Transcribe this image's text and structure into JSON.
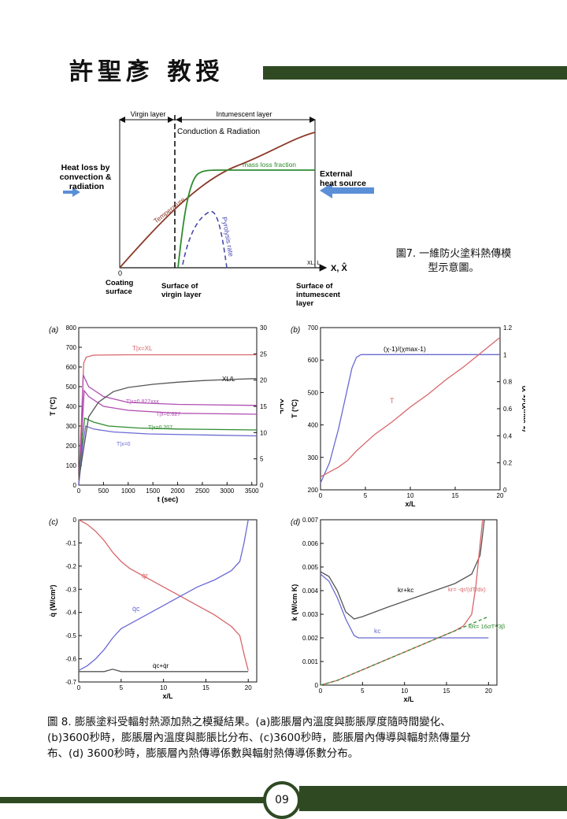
{
  "header": {
    "title": "許聖彥 教授"
  },
  "fig7": {
    "virgin_layer": "Virgin layer",
    "intumescent_layer": "Intumescent layer",
    "conduction_radiation": "Conduction & Radiation",
    "mass_loss_fraction": "mass loss fraction",
    "temperature": "Temperature",
    "pyrolysis_rate": "Pyrolysis rate",
    "heat_loss": [
      "Heat loss by",
      "convection &",
      "radiation"
    ],
    "external_heat": [
      "External",
      "heat source"
    ],
    "axis_x": "X, X̂",
    "x_l": "XL, L",
    "origin": "0",
    "coating_surface": [
      "Coating",
      "surface"
    ],
    "surface_virgin": [
      "Surface of",
      "virgin layer"
    ],
    "surface_intumescent": [
      "Surface of",
      "intumescent",
      "layer"
    ],
    "caption": [
      "圖7. 一維防火塗料熱傳模",
      "型示意圖。"
    ]
  },
  "chart_data": [
    {
      "type": "line",
      "panel": "(a)",
      "xlabel": "t (sec)",
      "ylabel": "T (°C)",
      "y2label": "XL/L",
      "xlim": [
        0,
        3600
      ],
      "ylim": [
        0,
        800
      ],
      "y2lim": [
        0,
        30
      ],
      "x_ticks": [
        "0",
        "500",
        "1000",
        "1500",
        "2000",
        "2500",
        "3000",
        "3500"
      ],
      "y_ticks": [
        "0",
        "100",
        "200",
        "300",
        "400",
        "500",
        "600",
        "700",
        "800"
      ],
      "y2_ticks": [
        "0",
        "5",
        "10",
        "15",
        "20",
        "25",
        "30"
      ],
      "series": [
        {
          "name": "T|x=XL",
          "x": [
            0,
            50,
            100,
            150,
            300,
            1000,
            2000,
            3600
          ],
          "y": [
            0,
            300,
            620,
            650,
            660,
            662,
            662,
            662
          ]
        },
        {
          "name": "T|x=0.827xxx",
          "x": [
            0,
            60,
            90,
            200,
            500,
            1000,
            2000,
            3600
          ],
          "y": [
            0,
            300,
            560,
            500,
            450,
            420,
            410,
            405
          ]
        },
        {
          "name": "T|x=0.627",
          "x": [
            0,
            70,
            110,
            200,
            500,
            1000,
            2000,
            3600
          ],
          "y": [
            0,
            300,
            480,
            450,
            400,
            380,
            365,
            360
          ]
        },
        {
          "name": "T|x=0.207",
          "x": [
            0,
            80,
            120,
            300,
            600,
            1200,
            2000,
            3600
          ],
          "y": [
            0,
            250,
            340,
            320,
            300,
            290,
            285,
            280
          ]
        },
        {
          "name": "T|x=0",
          "x": [
            0,
            80,
            140,
            300,
            700,
            1400,
            2500,
            3600
          ],
          "y": [
            0,
            200,
            300,
            285,
            270,
            260,
            255,
            250
          ]
        },
        {
          "name": "XL/L",
          "x": [
            0,
            100,
            200,
            400,
            700,
            1000,
            1500,
            2000,
            2500,
            3000,
            3600
          ],
          "y": [
            1,
            7,
            13,
            15.8,
            17.8,
            18.6,
            19.2,
            19.6,
            19.9,
            20.1,
            20.3
          ]
        }
      ]
    },
    {
      "type": "line",
      "panel": "(b)",
      "xlabel": "x/L",
      "ylabel": "T (°C)",
      "y2label": "(χ-1)/(χmax-1)",
      "xlim": [
        0,
        20
      ],
      "ylim": [
        200,
        700
      ],
      "y2lim": [
        0,
        1.2
      ],
      "x_ticks": [
        "0",
        "5",
        "10",
        "15",
        "20"
      ],
      "y_ticks": [
        "200",
        "300",
        "400",
        "500",
        "600",
        "700"
      ],
      "y2_ticks": [
        "0",
        "0.2",
        "0.4",
        "0.6",
        "0.8",
        "1",
        "1.2"
      ],
      "series": [
        {
          "name": "(χ-1)/(χmax-1)",
          "x": [
            0,
            1,
            2,
            3,
            3.5,
            4,
            4.5,
            5,
            10,
            20
          ],
          "y": [
            0.05,
            0.2,
            0.45,
            0.75,
            0.9,
            0.98,
            1.0,
            1.0,
            1.0,
            1.0
          ]
        },
        {
          "name": "T",
          "x": [
            0,
            1,
            2,
            3,
            4,
            5,
            6,
            8,
            10,
            12,
            14,
            16,
            18,
            20
          ],
          "y": [
            240,
            255,
            270,
            290,
            320,
            345,
            370,
            410,
            455,
            495,
            540,
            580,
            625,
            670
          ]
        }
      ]
    },
    {
      "type": "line",
      "panel": "(c)",
      "xlabel": "x/L",
      "ylabel": "q̇ (W/cm²)",
      "xlim": [
        0,
        21
      ],
      "ylim": [
        -0.7,
        0
      ],
      "x_ticks": [
        "0",
        "5",
        "10",
        "15",
        "20"
      ],
      "y_ticks": [
        "0",
        "-0.1",
        "-0.2",
        "-0.3",
        "-0.4",
        "-0.5",
        "-0.6",
        "-0.7"
      ],
      "series": [
        {
          "name": "q̇r",
          "x": [
            0,
            1,
            2,
            3,
            4,
            5,
            6,
            8,
            10,
            12,
            14,
            16,
            18,
            19,
            19.5,
            20
          ],
          "y": [
            0,
            -0.02,
            -0.05,
            -0.09,
            -0.14,
            -0.18,
            -0.21,
            -0.25,
            -0.29,
            -0.33,
            -0.37,
            -0.41,
            -0.46,
            -0.5,
            -0.58,
            -0.65
          ]
        },
        {
          "name": "q̇c",
          "x": [
            0,
            1,
            2,
            3,
            4,
            5,
            6,
            8,
            10,
            12,
            14,
            16,
            18,
            19,
            19.5,
            20
          ],
          "y": [
            -0.65,
            -0.63,
            -0.6,
            -0.56,
            -0.51,
            -0.47,
            -0.45,
            -0.41,
            -0.37,
            -0.33,
            -0.29,
            -0.26,
            -0.22,
            -0.18,
            -0.1,
            0
          ]
        },
        {
          "name": "q̇c+q̇r",
          "x": [
            0,
            3,
            4,
            5,
            10,
            20
          ],
          "y": [
            -0.655,
            -0.655,
            -0.645,
            -0.655,
            -0.655,
            -0.655
          ]
        }
      ]
    },
    {
      "type": "line",
      "panel": "(d)",
      "xlabel": "x/L",
      "ylabel": "k (W/cm K)",
      "xlim": [
        0,
        21
      ],
      "ylim": [
        0,
        0.007
      ],
      "x_ticks": [
        "0",
        "5",
        "10",
        "15",
        "20"
      ],
      "y_ticks": [
        "0",
        "0.001",
        "0.002",
        "0.003",
        "0.004",
        "0.005",
        "0.006",
        "0.007"
      ],
      "series": [
        {
          "name": "kr+kc",
          "x": [
            0,
            1,
            2,
            3,
            4,
            5,
            8,
            12,
            16,
            18,
            19,
            19.5
          ],
          "y": [
            0.0048,
            0.0046,
            0.004,
            0.0031,
            0.0028,
            0.0029,
            0.0033,
            0.0038,
            0.0043,
            0.0047,
            0.0055,
            0.007
          ]
        },
        {
          "name": "kc",
          "x": [
            0,
            1,
            2,
            3,
            4,
            4.5,
            5,
            10,
            20
          ],
          "y": [
            0.0047,
            0.0044,
            0.0037,
            0.0028,
            0.0021,
            0.002,
            0.002,
            0.002,
            0.002
          ]
        },
        {
          "name": "kr = -q̇r/(dT/dx)",
          "x": [
            0,
            2,
            4,
            6,
            8,
            10,
            12,
            14,
            16,
            17,
            18,
            18.5,
            19,
            19.3
          ],
          "y": [
            0,
            0.0002,
            0.0005,
            0.0008,
            0.0011,
            0.0014,
            0.0017,
            0.002,
            0.0023,
            0.0025,
            0.003,
            0.0042,
            0.006,
            0.007
          ]
        },
        {
          "name": "kR = 16σT³/3β",
          "x": [
            0,
            2,
            4,
            6,
            8,
            10,
            12,
            14,
            16,
            18,
            20
          ],
          "y": [
            0,
            0.0002,
            0.0005,
            0.0008,
            0.0011,
            0.0014,
            0.0017,
            0.002,
            0.0023,
            0.0026,
            0.0029
          ]
        }
      ]
    }
  ],
  "fig8": {
    "labels": {
      "a_TXL": "T|x=XL",
      "a_T0827": "T|x=0.827xxx",
      "a_T0627": "T|x=0.627",
      "a_T0207": "T|x=0.207",
      "a_T0": "T|x=0",
      "a_XL": "XL/L",
      "b_chi": "(χ-1)/(χmax-1)",
      "b_T": "T",
      "c_qr": "q̇r",
      "c_qc": "q̇c",
      "c_sum": "q̇c+q̇r",
      "d_sum": "kr+kc",
      "d_kc": "kc",
      "d_kr": "kr= -q̇r/(dT/dx)",
      "d_kR": "kR= 16σT³/3β"
    },
    "caption": [
      "圖 8. 膨脹塗料受輻射熱源加熱之模擬結果。(a)膨脹層內溫度與膨脹厚度隨時間變化、",
      "(b)3600秒時，膨脹層內溫度與膨脹比分布、(c)3600秒時，膨脹層內傳導與輻射熱傳量分",
      "布、(d) 3600秒時，膨脹層內熱傳導係數與輻射熱傳導係數分布。"
    ]
  },
  "footer": {
    "page_number": "09"
  },
  "colors": {
    "brand_green": "#2f4a23",
    "curve_red": "#d9666a",
    "curve_blue": "#6a6ad4",
    "curve_gray": "#555555",
    "curve_green": "#2e8b2e",
    "curve_purple": "#b04db0",
    "temp_brown": "#8b3a2a"
  }
}
